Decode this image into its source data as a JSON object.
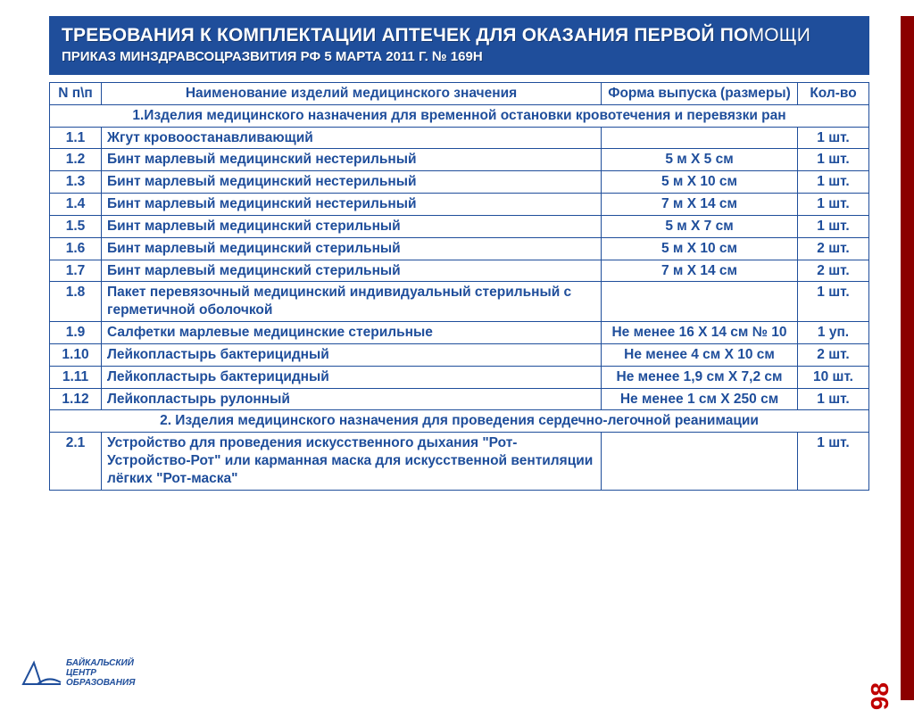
{
  "accent_color": "#1f4e9b",
  "side_color": "#8b0000",
  "page_number": "98",
  "header": {
    "line1_bold": "ТРЕБОВАНИЯ К КОМПЛЕКТАЦИИ АПТЕЧЕК ДЛЯ ОКАЗАНИЯ ПЕРВОЙ ПО",
    "line1_thin": "МОЩИ",
    "line2": "ПРИКАЗ МИНЗДРАВСОЦРАЗВИТИЯ РФ 5 МАРТА 2011 Г. № 169Н"
  },
  "columns": {
    "n": "N п\\п",
    "name": "Наименование изделий медицинского значения",
    "form": "Форма выпуска (размеры)",
    "qty": "Кол-во"
  },
  "rows": [
    {
      "type": "section",
      "text": "1.Изделия медицинского назначения для временной остановки кровотечения и перевязки ран"
    },
    {
      "n": "1.1",
      "name": "Жгут кровоостанавливающий",
      "form": "",
      "qty": "1 шт."
    },
    {
      "n": "1.2",
      "name": "Бинт марлевый медицинский нестерильный",
      "form": "5 м Х 5 см",
      "qty": "1 шт."
    },
    {
      "n": "1.3",
      "name": "Бинт марлевый медицинский нестерильный",
      "form": "5 м Х 10 см",
      "qty": "1 шт."
    },
    {
      "n": "1.4",
      "name": "Бинт марлевый медицинский нестерильный",
      "form": "7 м Х 14 см",
      "qty": "1 шт."
    },
    {
      "n": "1.5",
      "name": "Бинт марлевый медицинский стерильный",
      "form": "5 м Х 7 см",
      "qty": "1 шт."
    },
    {
      "n": "1.6",
      "name": "Бинт марлевый медицинский стерильный",
      "form": "5 м Х 10 см",
      "qty": "2 шт."
    },
    {
      "n": "1.7",
      "name": "Бинт марлевый медицинский стерильный",
      "form": "7 м Х 14 см",
      "qty": "2 шт."
    },
    {
      "n": "1.8",
      "name": "Пакет перевязочный медицинский индивидуальный стерильный с герметичной оболочкой",
      "form": "",
      "qty": "1 шт."
    },
    {
      "n": "1.9",
      "name": "Салфетки марлевые медицинские стерильные",
      "form": "Не менее 16 Х 14 см № 10",
      "qty": "1 уп."
    },
    {
      "n": "1.10",
      "name": "Лейкопластырь бактерицидный",
      "form": "Не менее 4 см Х 10 см",
      "qty": "2 шт."
    },
    {
      "n": "1.11",
      "name": "Лейкопластырь бактерицидный",
      "form": "Не менее 1,9 см Х 7,2 см",
      "qty": "10 шт."
    },
    {
      "n": "1.12",
      "name": "Лейкопластырь рулонный",
      "form": "Не менее 1 см Х 250 см",
      "qty": "1 шт."
    },
    {
      "type": "section",
      "text": "2. Изделия медицинского назначения для проведения сердечно-легочной реанимации"
    },
    {
      "n": "2.1",
      "name": "Устройство для проведения искусственного дыхания \"Рот-Устройство-Рот\" или карманная маска для искусственной вентиляции лёгких \"Рот-маска\"",
      "form": "",
      "qty": "1 шт."
    }
  ],
  "logo": {
    "l1": "БАЙКАЛЬСКИЙ",
    "l2": "ЦЕНТР",
    "l3": "ОБРАЗОВАНИЯ"
  }
}
